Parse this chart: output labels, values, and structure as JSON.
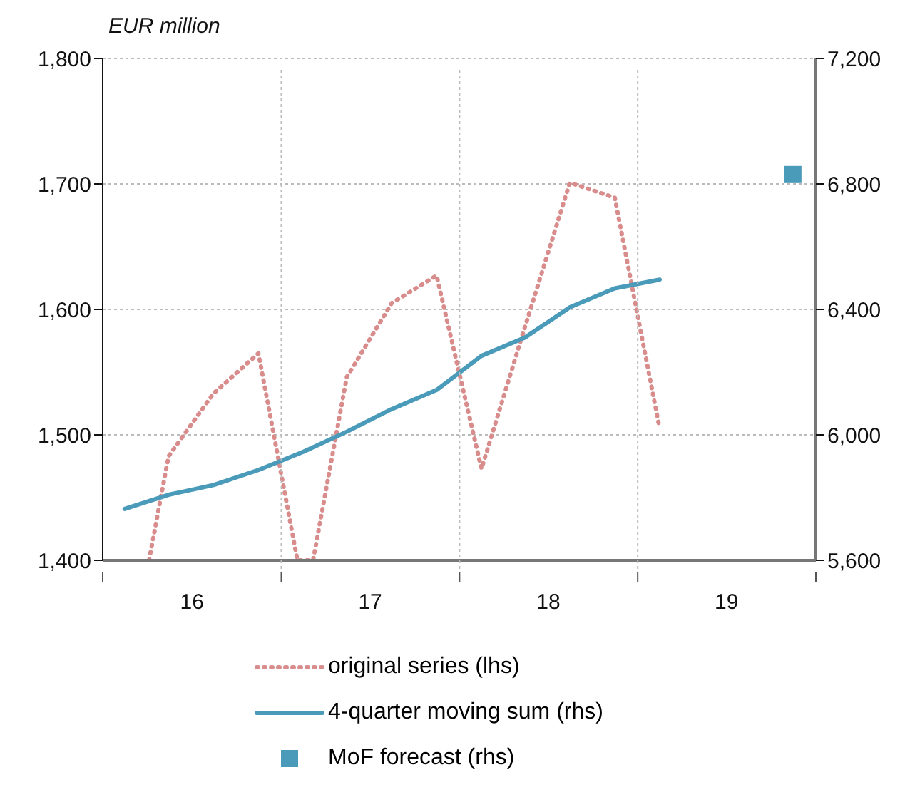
{
  "chart_data": {
    "type": "line",
    "ylabel": "EUR million",
    "xlim": [
      "2016",
      "2020"
    ],
    "xticks": [
      {
        "value": "2016",
        "label": null
      },
      {
        "value": "2016-07-02",
        "label": "16"
      },
      {
        "value": "2017",
        "label": null
      },
      {
        "value": "2017-07-02",
        "label": "17"
      },
      {
        "value": "2018",
        "label": null
      },
      {
        "value": "2018-07-02",
        "label": "18"
      },
      {
        "value": "2019",
        "label": null
      },
      {
        "value": "2019-07-02",
        "label": "19"
      },
      {
        "value": "2020",
        "label": null
      }
    ],
    "ylim": [
      1400,
      1800
    ],
    "yticks": [
      {
        "value": 1400,
        "label": "1,400"
      },
      {
        "value": 1500,
        "label": "1,500"
      },
      {
        "value": 1600,
        "label": "1,600"
      },
      {
        "value": 1700,
        "label": "1,700"
      },
      {
        "value": 1800,
        "label": "1,800"
      }
    ],
    "y2lim": [
      5600,
      7200
    ],
    "y2ticks": [
      {
        "value": 5600,
        "label": "5,600"
      },
      {
        "value": 6000,
        "label": "6,000"
      },
      {
        "value": 6400,
        "label": "6,400"
      },
      {
        "value": 6800,
        "label": "6,800"
      },
      {
        "value": 7200,
        "label": "7,200"
      }
    ],
    "grid": true,
    "legend": "bottom",
    "series": [
      {
        "name": "original series (lhs)",
        "color": "#d98c8c",
        "line_style": "dotted",
        "x": [
          "2016-04-05",
          "2016-05-15",
          "2016-08-15",
          "2016-11-15",
          "2017-02-03",
          "2017-03-07",
          "2017-05-15",
          "2017-08-15",
          "2017-11-15",
          "2018-02-15",
          "2018-05-15",
          "2018-08-15",
          "2018-11-15",
          "2019-02-15"
        ],
        "values": [
          1400,
          1483,
          1533,
          1565,
          1400,
          1400,
          1546,
          1605,
          1627,
          1473,
          1586,
          1701,
          1689,
          1505
        ]
      },
      {
        "name": "4-quarter moving sum (rhs)",
        "color": "#4a9aba",
        "line_style": "solid",
        "axis": "y2",
        "x": [
          "2016-02-15",
          "2016-05-15",
          "2016-08-15",
          "2016-11-15",
          "2017-02-15",
          "2017-05-15",
          "2017-08-15",
          "2017-11-15",
          "2018-02-15",
          "2018-05-15",
          "2018-08-15",
          "2018-11-15",
          "2019-02-15"
        ],
        "values": [
          5764,
          5809,
          5840,
          5888,
          5946,
          6010,
          6082,
          6143,
          6252,
          6310,
          6407,
          6467,
          6495
        ]
      },
      {
        "name": "MoF forecast (rhs)",
        "type": "scatter",
        "color": "#4a9aba",
        "marker": "square",
        "axis": "y2",
        "x": [
          "2019-11-15"
        ],
        "values": [
          6830
        ]
      }
    ]
  }
}
